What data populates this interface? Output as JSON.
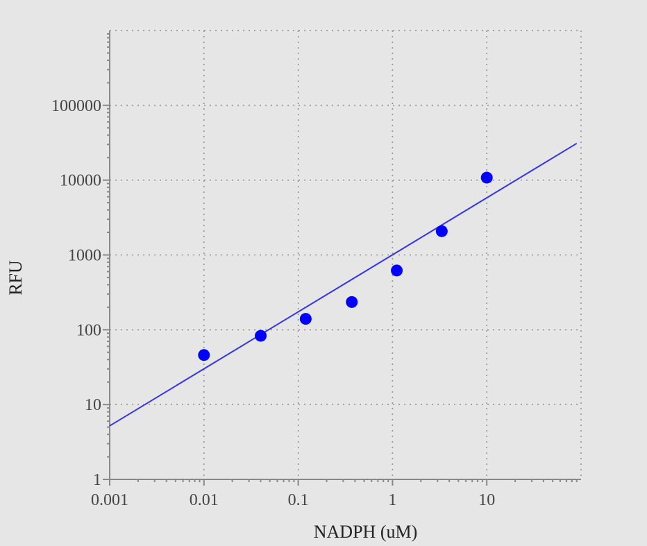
{
  "chart_data": {
    "type": "scatter",
    "xlabel": "NADPH (uM)",
    "ylabel": "RFU",
    "x_scale": "log",
    "y_scale": "log",
    "xlim": [
      0.001,
      100
    ],
    "ylim": [
      1,
      1000000
    ],
    "x_ticks": [
      {
        "value": 0.001,
        "label": "0.001"
      },
      {
        "value": 0.01,
        "label": "0.01"
      },
      {
        "value": 0.1,
        "label": "0.1"
      },
      {
        "value": 1,
        "label": "1"
      },
      {
        "value": 10,
        "label": "10"
      }
    ],
    "y_ticks": [
      {
        "value": 1,
        "label": "1"
      },
      {
        "value": 10,
        "label": "10"
      },
      {
        "value": 100,
        "label": "100"
      },
      {
        "value": 1000,
        "label": "1000"
      },
      {
        "value": 10000,
        "label": "10000"
      },
      {
        "value": 100000,
        "label": "100000"
      }
    ],
    "grid": true,
    "series": [
      {
        "type": "scatter",
        "color": "#0000ff",
        "points": [
          {
            "x": 0.01,
            "y": 46
          },
          {
            "x": 0.04,
            "y": 83
          },
          {
            "x": 0.12,
            "y": 140
          },
          {
            "x": 0.37,
            "y": 235
          },
          {
            "x": 1.11,
            "y": 620
          },
          {
            "x": 3.33,
            "y": 2080
          },
          {
            "x": 10,
            "y": 10800
          }
        ]
      },
      {
        "type": "line",
        "color": "#3333ee",
        "points": [
          {
            "x": 0.001,
            "y": 5.2
          },
          {
            "x": 90,
            "y": 31000
          }
        ]
      }
    ]
  }
}
